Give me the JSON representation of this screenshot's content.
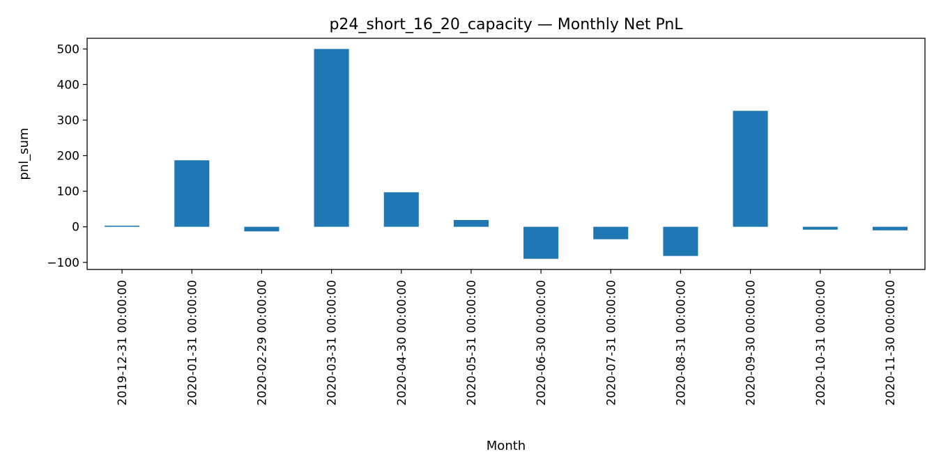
{
  "chart_data": {
    "type": "bar",
    "title": "p24_short_16_20_capacity — Monthly Net PnL",
    "xlabel": "Month",
    "ylabel": "pnl_sum",
    "categories": [
      "2019-12-31 00:00:00",
      "2020-01-31 00:00:00",
      "2020-02-29 00:00:00",
      "2020-03-31 00:00:00",
      "2020-04-30 00:00:00",
      "2020-05-31 00:00:00",
      "2020-06-30 00:00:00",
      "2020-07-31 00:00:00",
      "2020-08-31 00:00:00",
      "2020-09-30 00:00:00",
      "2020-10-31 00:00:00",
      "2020-11-30 00:00:00"
    ],
    "values": [
      3,
      187,
      -13,
      500,
      97,
      19,
      -90,
      -35,
      -82,
      326,
      -8,
      -10
    ],
    "ylim": [
      -120,
      530
    ],
    "yticks": [
      -100,
      0,
      100,
      200,
      300,
      400,
      500
    ],
    "ytick_labels": [
      "−100",
      "0",
      "100",
      "200",
      "300",
      "400",
      "500"
    ],
    "grid": false,
    "color": "#1f77b4"
  }
}
